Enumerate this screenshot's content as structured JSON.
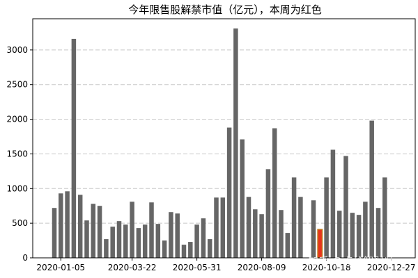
{
  "chart_data": {
    "type": "bar",
    "title": "今年限售股解禁市值（亿元），本周为红色",
    "xlabel": "",
    "ylabel": "",
    "ylim": [
      0,
      3450
    ],
    "grid": "horizontal-dashed",
    "y_ticks": [
      0,
      500,
      1000,
      1500,
      2000,
      2500,
      3000
    ],
    "x_tick_labels": [
      "2020-01-05",
      "2020-03-22",
      "2020-05-31",
      "2020-08-09",
      "2020-10-18",
      "2020-12-27"
    ],
    "x_tick_bar_index": [
      1,
      12,
      22,
      32,
      42,
      52
    ],
    "values": [
      720,
      930,
      960,
      3160,
      910,
      540,
      780,
      750,
      270,
      450,
      530,
      480,
      810,
      430,
      480,
      800,
      490,
      250,
      660,
      640,
      190,
      230,
      480,
      570,
      270,
      870,
      870,
      1880,
      3310,
      1710,
      880,
      700,
      630,
      1280,
      1870,
      690,
      360,
      1160,
      880,
      0,
      830,
      410,
      1160,
      1560,
      680,
      1470,
      650,
      620,
      810,
      1980,
      720,
      1160
    ],
    "highlight_index": 41,
    "bar_color": "#666666",
    "highlight_color": "#e8341c",
    "highlight_edge_color": "#c27b1e"
  },
  "watermark": "知乎 @点拾智财师"
}
